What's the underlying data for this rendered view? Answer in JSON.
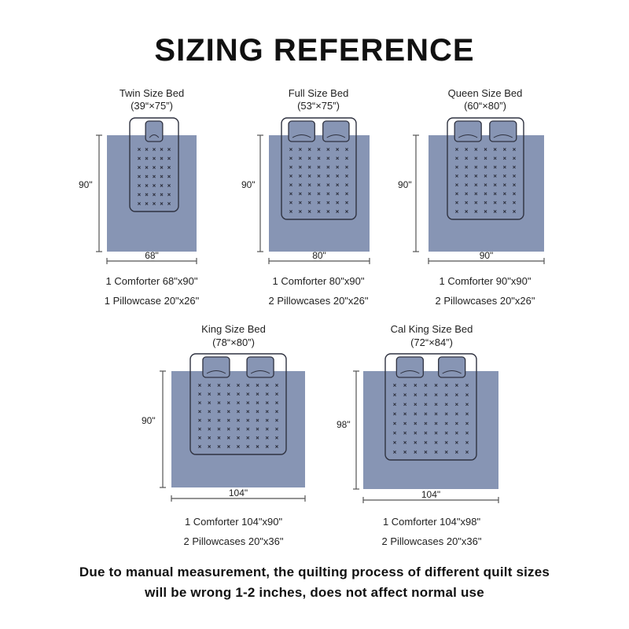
{
  "title": "SIZING REFERENCE",
  "colors": {
    "comforter": "#8795b4",
    "bed_outline": "#2f3240",
    "dimension_line": "#555555",
    "button_marks": "#2f3240"
  },
  "beds": [
    {
      "name": "Twin Size Bed",
      "dims": "(39“×75”)",
      "height_label": "90\"",
      "width_label": "68\"",
      "comforter": "1 Comforter 68\"x90\"",
      "pillowcases": "1 Pillowcase 20\"x26\"",
      "pillow_count": 1
    },
    {
      "name": "Full Size Bed",
      "dims": "(53“×75”)",
      "height_label": "90\"",
      "width_label": "80\"",
      "comforter": "1 Comforter 80\"x90\"",
      "pillowcases": "2 Pillowcases 20\"x26\"",
      "pillow_count": 2
    },
    {
      "name": "Queen Size Bed",
      "dims": "(60“×80”)",
      "height_label": "90\"",
      "width_label": "90\"",
      "comforter": "1 Comforter 90\"x90\"",
      "pillowcases": "2 Pillowcases 20\"x26\"",
      "pillow_count": 2
    },
    {
      "name": "King Size Bed",
      "dims": "(78“×80”)",
      "height_label": "90\"",
      "width_label": "104\"",
      "comforter": "1 Comforter 104\"x90\"",
      "pillowcases": "2 Pillowcases 20\"x36\"",
      "pillow_count": 2
    },
    {
      "name": "Cal King Size Bed",
      "dims": "(72“×84”)",
      "height_label": "98\"",
      "width_label": "104\"",
      "comforter": "1 Comforter 104\"x98\"",
      "pillowcases": "2 Pillowcases 20\"x36\"",
      "pillow_count": 2
    }
  ],
  "note": {
    "line1": "Due to manual measurement, the quilting process of different quilt sizes",
    "line2": "will be wrong 1-2 inches, does not affect normal use"
  }
}
